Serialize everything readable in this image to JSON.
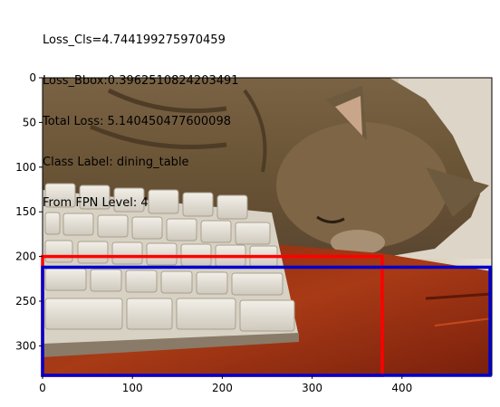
{
  "title_lines": [
    "Loss_Cls=4.744199275970459",
    "Loss_Bbox:0.3962510824203491",
    "Total Loss: 5.140450477600098",
    "Class Label: dining_table",
    "From FPN Level: 4"
  ],
  "image": {
    "subject": "cat sleeping on a keyboard on a wooden desk",
    "width_units": 500,
    "height_units": 333
  },
  "x_axis": {
    "ticks": [
      0,
      100,
      200,
      300,
      400
    ]
  },
  "y_axis": {
    "ticks": [
      0,
      50,
      100,
      150,
      200,
      250,
      300
    ]
  },
  "boxes": [
    {
      "label": "red-box",
      "color": "#ff0000",
      "x0": 0,
      "y0": 200,
      "x1": 378,
      "y1": 333
    },
    {
      "label": "blue-box",
      "color": "#0000cc",
      "x0": 0,
      "y0": 212,
      "x1": 498,
      "y1": 333
    }
  ]
}
